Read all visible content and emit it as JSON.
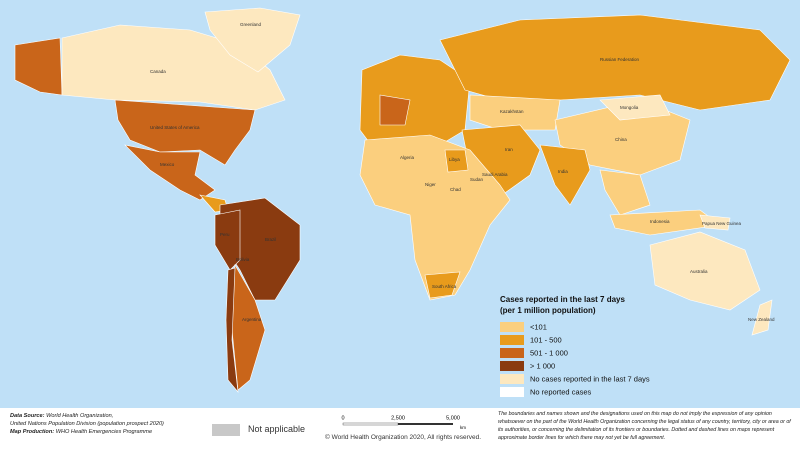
{
  "map": {
    "labels": [
      "Greenland",
      "Canada",
      "United States of America",
      "Mexico",
      "Brazil",
      "Argentina",
      "Russian Federation",
      "China",
      "India",
      "Australia",
      "Algeria",
      "Libya",
      "Niger",
      "Chad",
      "Sudan",
      "South Africa",
      "Kazakhstan",
      "Mongolia",
      "Iran",
      "Peru",
      "Bolivia",
      "Indonesia",
      "Papua New Guinea",
      "New Zealand",
      "Saudi Arabia"
    ]
  },
  "legend": {
    "title_line1": "Cases reported in the last 7 days",
    "title_line2": "(per 1 million population)",
    "items": [
      {
        "label": "<101",
        "color": "#fbcf7e"
      },
      {
        "label": "101 - 500",
        "color": "#e89b1c"
      },
      {
        "label": "501 - 1 000",
        "color": "#c9651a"
      },
      {
        "label": "> 1 000",
        "color": "#8a3b10"
      },
      {
        "label": "No cases reported in the last 7 days",
        "color": "#fde8bf"
      },
      {
        "label": "No reported cases",
        "color": "#ffffff"
      }
    ]
  },
  "footer": {
    "source_label": "Data Source:",
    "source_text": "World Health Organization,",
    "source_line2": "United Nations Population Division (population prospect 2020)",
    "production_label": "Map Production:",
    "production_text": "WHO Health Emergencies Programme",
    "not_applicable": "Not applicable",
    "scale": [
      "0",
      "2,500",
      "5,000"
    ],
    "scale_unit": "km",
    "copyright": "© World Health Organization  2020,  All rights reserved.",
    "disclaimer": "The boundaries and names shown and the designations used on this map do not imply the expression of any opinion whatsoever on the part of the World Health Organization concerning the legal status of any country, territory, city or area or of its authorities, or concerning the delimitation of its frontiers or boundaries. Dotted and dashed lines on maps represent approximate border lines for which there may not yet be full agreement."
  }
}
